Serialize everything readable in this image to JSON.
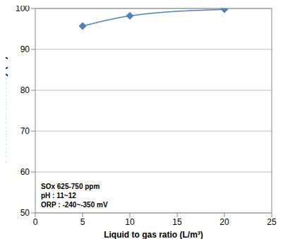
{
  "chart_data": {
    "type": "line",
    "x_label": "Liquid to gas ratio (L/m³)",
    "y_label": "SOx removal efficiency (%)",
    "x": [
      5,
      10,
      20
    ],
    "values": [
      95.7,
      98.2,
      99.8
    ],
    "color": "#4f81bd",
    "marker": "diamond",
    "xlim": [
      0,
      25
    ],
    "xticks": [
      0,
      5,
      10,
      15,
      20,
      25
    ],
    "ylim": [
      50,
      100
    ],
    "yticks": [
      50,
      60,
      70,
      80,
      90,
      100
    ],
    "grid": true,
    "annotations": [
      "SOx 625-750 ppm",
      "pH : 11~12",
      "ORP : -240~-350 mV"
    ]
  }
}
